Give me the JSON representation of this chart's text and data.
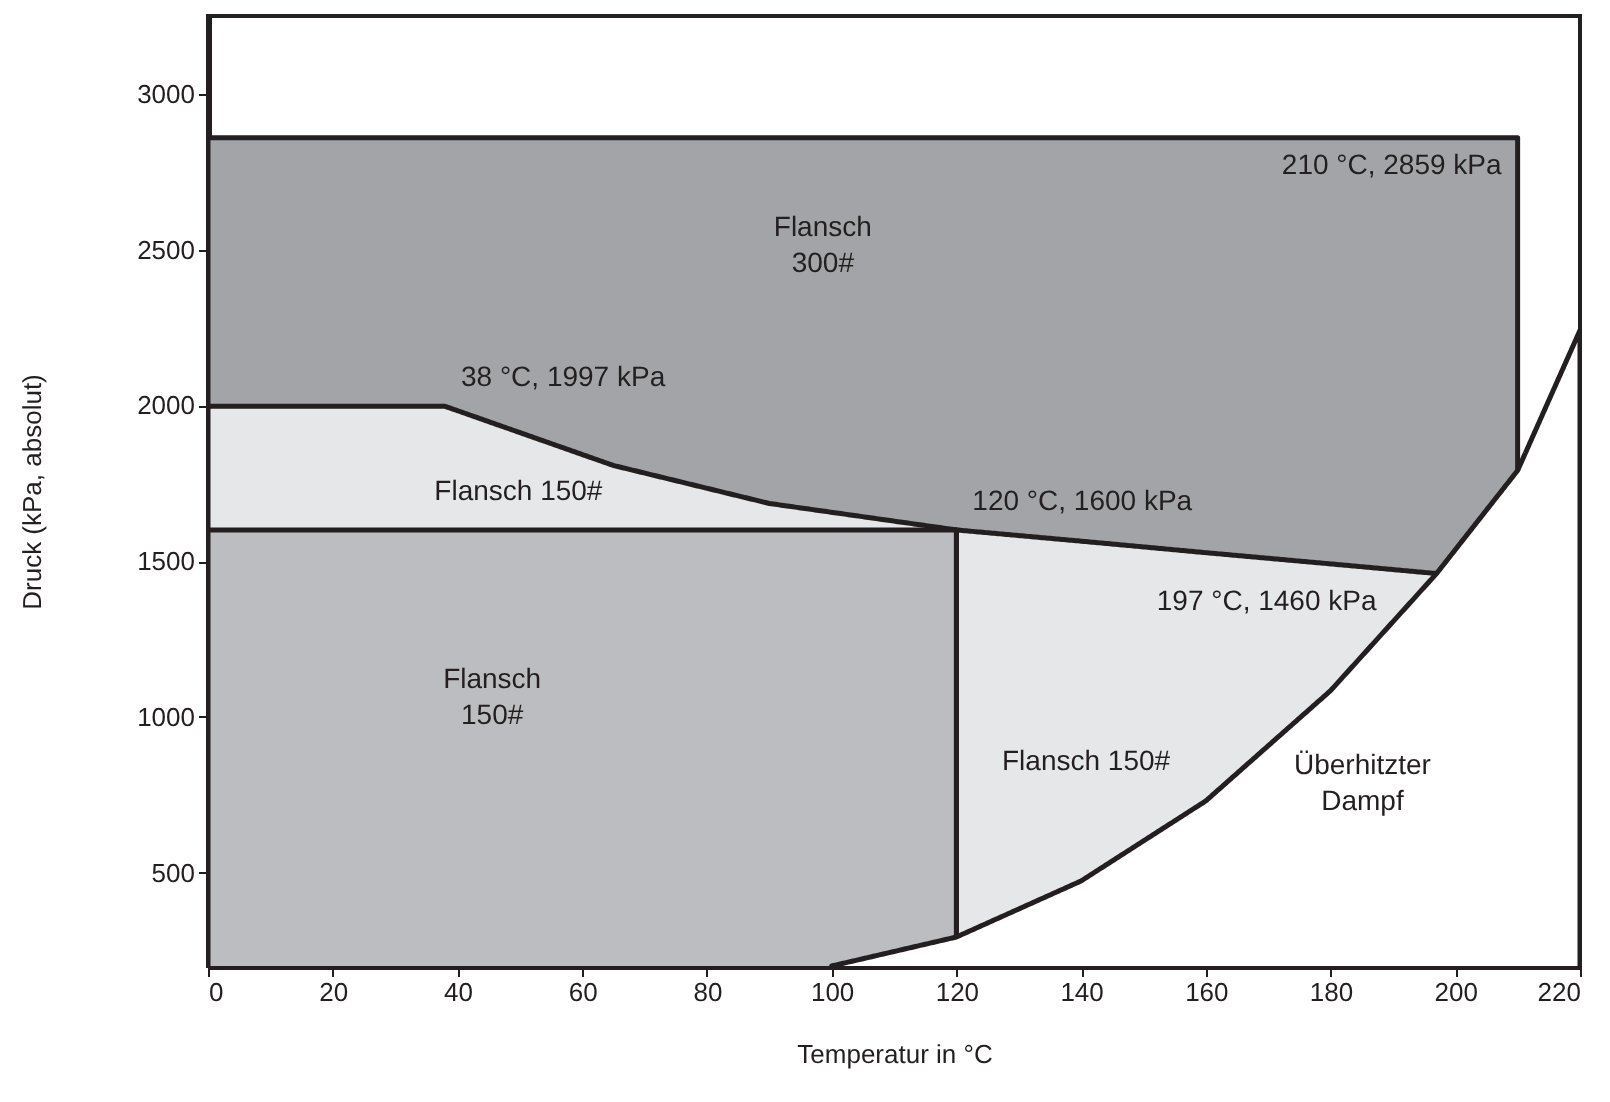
{
  "chart_data": {
    "type": "area",
    "xlabel": "Temperatur in °C",
    "ylabel": "Druck (kPa, absolut)",
    "xlim": [
      0,
      220
    ],
    "xticks": [
      0,
      20,
      40,
      60,
      80,
      100,
      120,
      140,
      160,
      180,
      200,
      220
    ],
    "ylim": [
      200,
      3250
    ],
    "yticks": [
      500,
      1000,
      1500,
      2000,
      2500,
      3000
    ],
    "grid": false,
    "series": [
      {
        "name": "Flansch 300#",
        "color": "#a3a4a8",
        "x": [
          0,
          210
        ],
        "values": [
          2859,
          2859
        ]
      },
      {
        "name": "Flansch 150#",
        "color": "#e6e7e8",
        "x": [
          0,
          38,
          65,
          90,
          120
        ],
        "values": [
          1997,
          1997,
          1807,
          1685,
          1600
        ]
      },
      {
        "name": "Flansch 150#",
        "color": "#e6e7e8",
        "x": [
          120,
          140,
          160,
          180,
          197
        ],
        "values": [
          1600,
          1564,
          1527,
          1491,
          1460
        ]
      },
      {
        "name": "Flansch 150#",
        "color": "#bcbdc0",
        "x": [
          0,
          120
        ],
        "values": [
          1600,
          1600
        ]
      },
      {
        "name": "Überhitzter Dampf",
        "color": "#ffffff",
        "line_style": "solid",
        "x": [
          100,
          120,
          140,
          160,
          180,
          197,
          210,
          220
        ],
        "values": [
          200,
          293,
          473,
          730,
          1084,
          1460,
          1791,
          2241
        ]
      }
    ],
    "annotations": [
      {
        "text": "38 °C, 1997 kPa",
        "x": 38,
        "y": 1997
      },
      {
        "text": "120 °C, 1600 kPa",
        "x": 120,
        "y": 1600
      },
      {
        "text": "197 °C, 1460 kPa",
        "x": 197,
        "y": 1460
      },
      {
        "text": "210 °C, 2859 kPa",
        "x": 210,
        "y": 2859
      }
    ]
  }
}
